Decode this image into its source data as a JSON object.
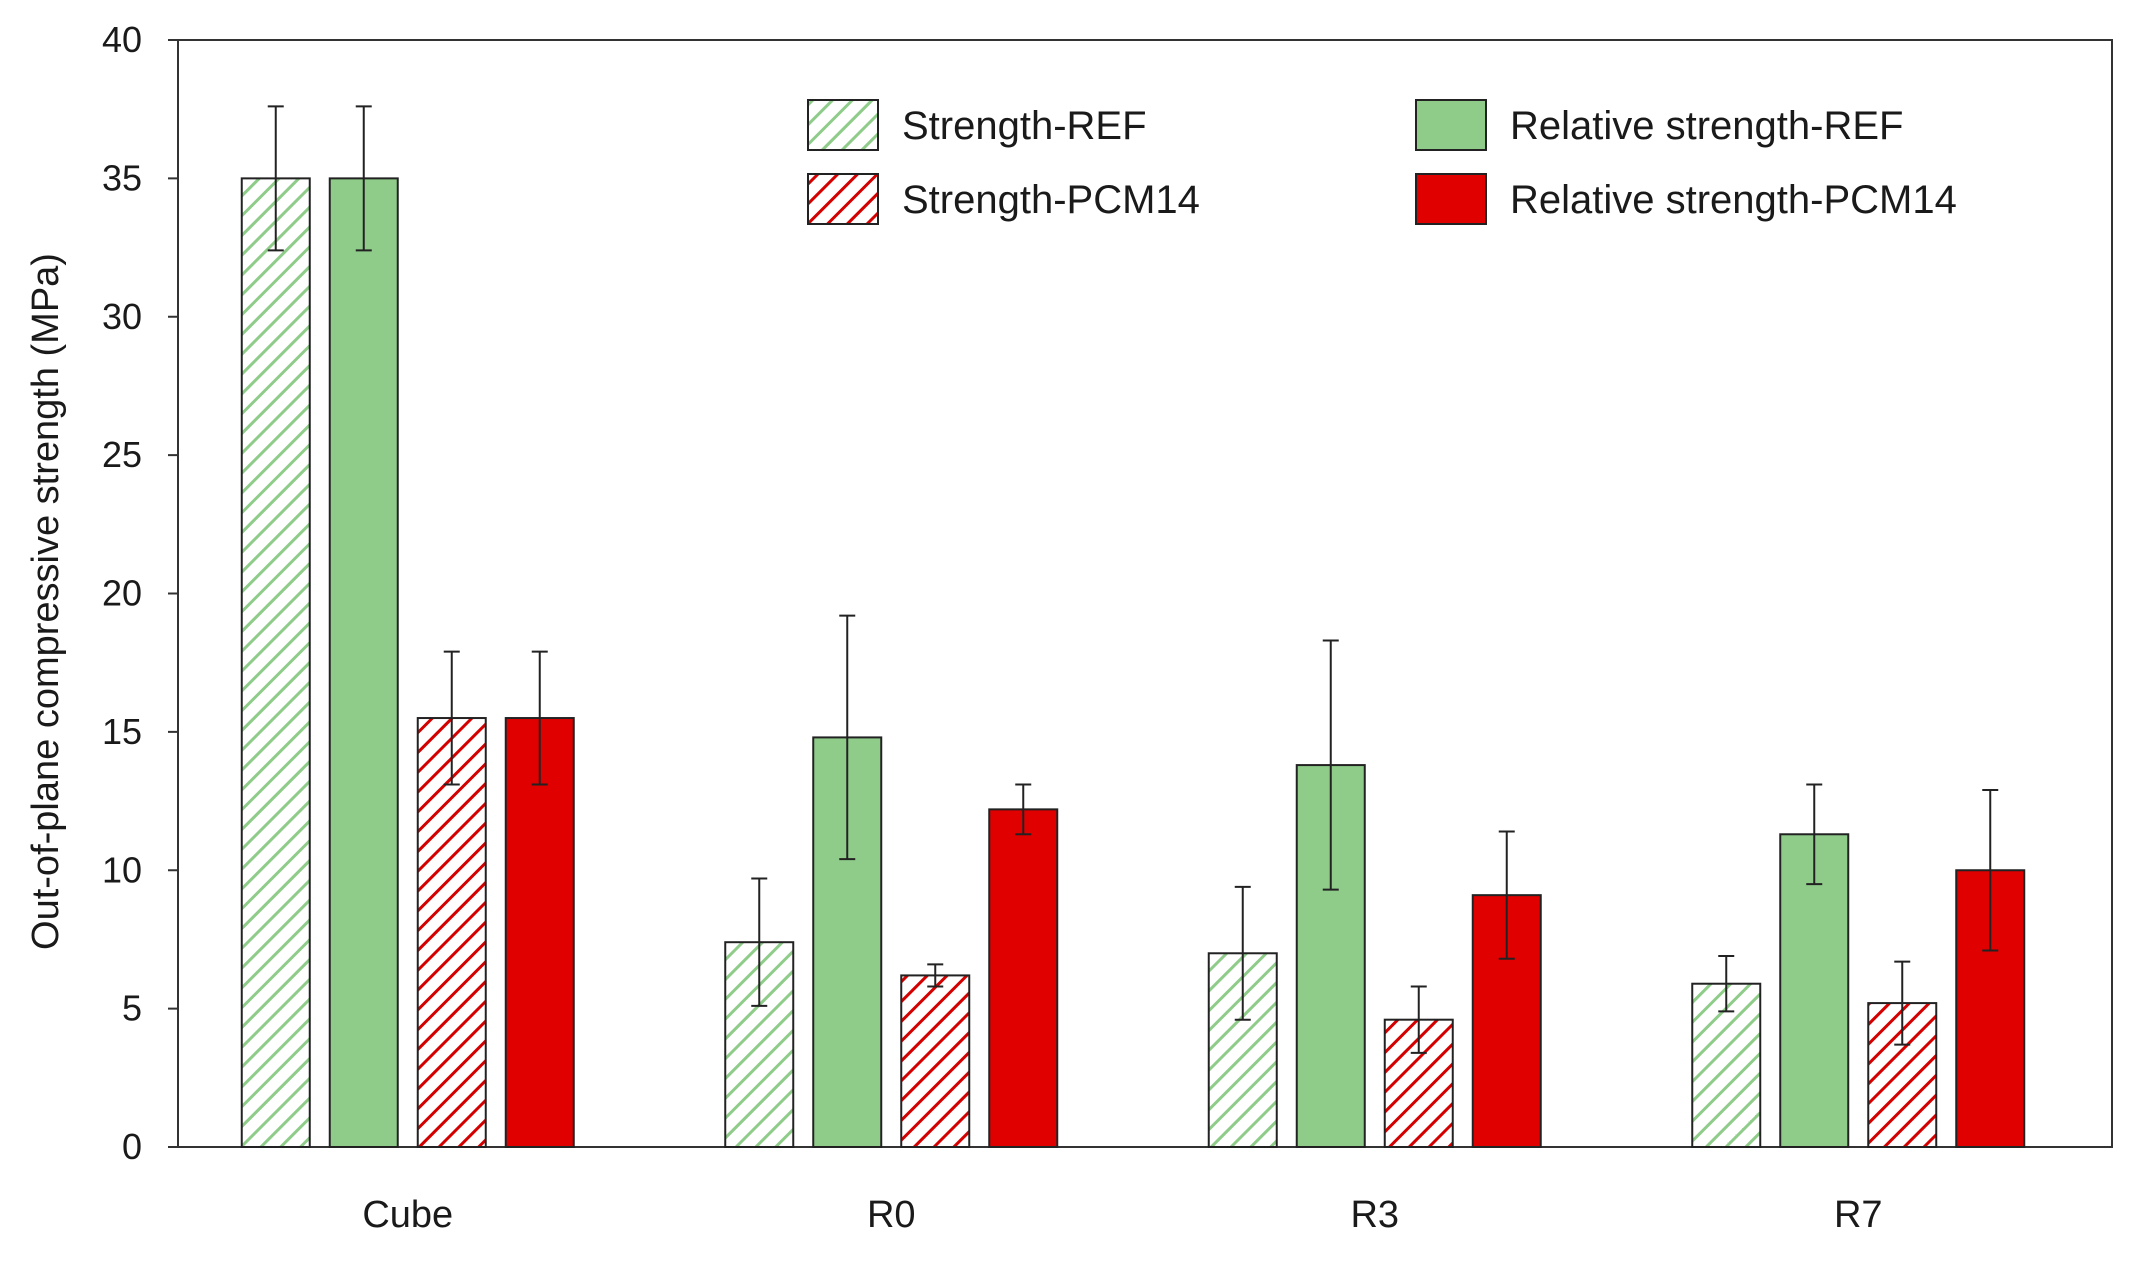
{
  "chart_data": {
    "type": "bar",
    "title": "",
    "xlabel": "",
    "ylabel": "Out-of-plane compressive strength (MPa)",
    "ylim": [
      0,
      40
    ],
    "yticks": [
      0,
      5,
      10,
      15,
      20,
      25,
      30,
      35,
      40
    ],
    "grid": false,
    "legend_position": "top-right",
    "categories": [
      "Cube",
      "R0",
      "R3",
      "R7"
    ],
    "series": [
      {
        "name": "Strength-REF",
        "style": "hatched",
        "fill": "#ffffff",
        "stroke_color": "#8fcc8a",
        "values": [
          35.0,
          7.4,
          7.0,
          5.9
        ],
        "errors": [
          2.6,
          2.3,
          2.4,
          1.0
        ]
      },
      {
        "name": "Relative strength-REF",
        "style": "solid",
        "fill": "#8fcc8a",
        "stroke_color": "#8fcc8a",
        "values": [
          35.0,
          14.8,
          13.8,
          11.3
        ],
        "errors": [
          2.6,
          4.4,
          4.5,
          1.8
        ]
      },
      {
        "name": "Strength-PCM14",
        "style": "hatched",
        "fill": "#ffffff",
        "stroke_color": "#d40000",
        "values": [
          15.5,
          6.2,
          4.6,
          5.2
        ],
        "errors": [
          2.4,
          0.4,
          1.2,
          1.5
        ]
      },
      {
        "name": "Relative strength-PCM14",
        "style": "solid",
        "fill": "#e00000",
        "stroke_color": "#e00000",
        "values": [
          15.5,
          12.2,
          9.1,
          10.0
        ],
        "errors": [
          2.4,
          0.9,
          2.3,
          2.9
        ]
      }
    ]
  }
}
